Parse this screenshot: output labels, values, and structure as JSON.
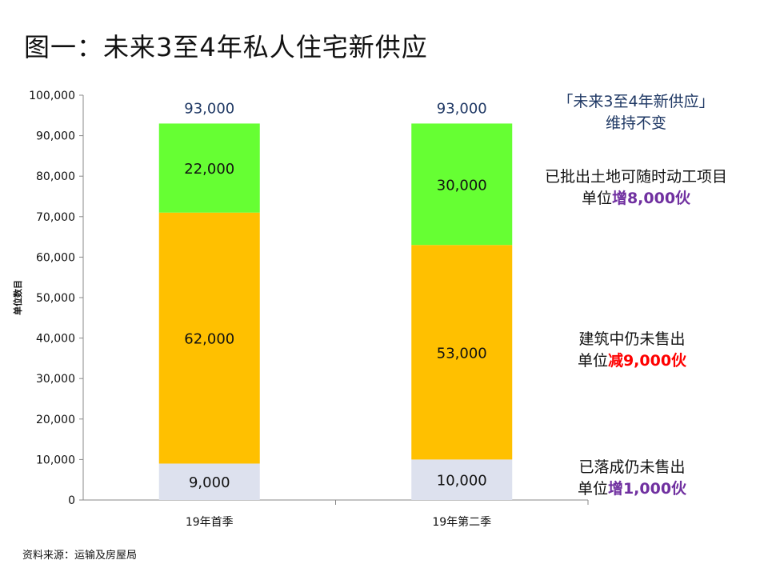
{
  "title": "图一：未来3至4年私人住宅新供应",
  "source": "资料来源：运输及房屋局",
  "annotations": {
    "top": {
      "line1": "「未来3至4年新供应」",
      "line2": "维持不变"
    },
    "land": {
      "line1": "已批出土地可随时动工项目",
      "prefix": "单位",
      "change": "增8,000伙"
    },
    "construction": {
      "line1": "建筑中仍未售出",
      "prefix": "单位",
      "change": "减9,000伙"
    },
    "completed": {
      "line1": "已落成仍未售出",
      "prefix": "单位",
      "change": "增1,000伙"
    }
  },
  "colors": {
    "completed": "#dde1ee",
    "construction": "#ffc000",
    "land": "#66ff33",
    "increase": "#7030a0",
    "decrease": "#ff0000",
    "total_label": "#1f3864"
  },
  "chart_data": {
    "type": "bar",
    "stacked": true,
    "title": "",
    "xlabel": "",
    "ylabel": "单位数目",
    "ylim": [
      0,
      100000
    ],
    "yticks": [
      "0",
      "10,000",
      "20,000",
      "30,000",
      "40,000",
      "50,000",
      "60,000",
      "70,000",
      "80,000",
      "90,000",
      "100,000"
    ],
    "categories": [
      "19年首季",
      "19年第二季"
    ],
    "series": [
      {
        "name": "已落成仍未售出",
        "values": [
          9000,
          10000
        ],
        "labels": [
          "9,000",
          "10,000"
        ]
      },
      {
        "name": "建筑中仍未售出",
        "values": [
          62000,
          53000
        ],
        "labels": [
          "62,000",
          "53,000"
        ]
      },
      {
        "name": "已批出土地可随时动工项目",
        "values": [
          22000,
          30000
        ],
        "labels": [
          "22,000",
          "30,000"
        ]
      }
    ],
    "totals": [
      93000,
      93000
    ],
    "total_labels": [
      "93,000",
      "93,000"
    ]
  }
}
